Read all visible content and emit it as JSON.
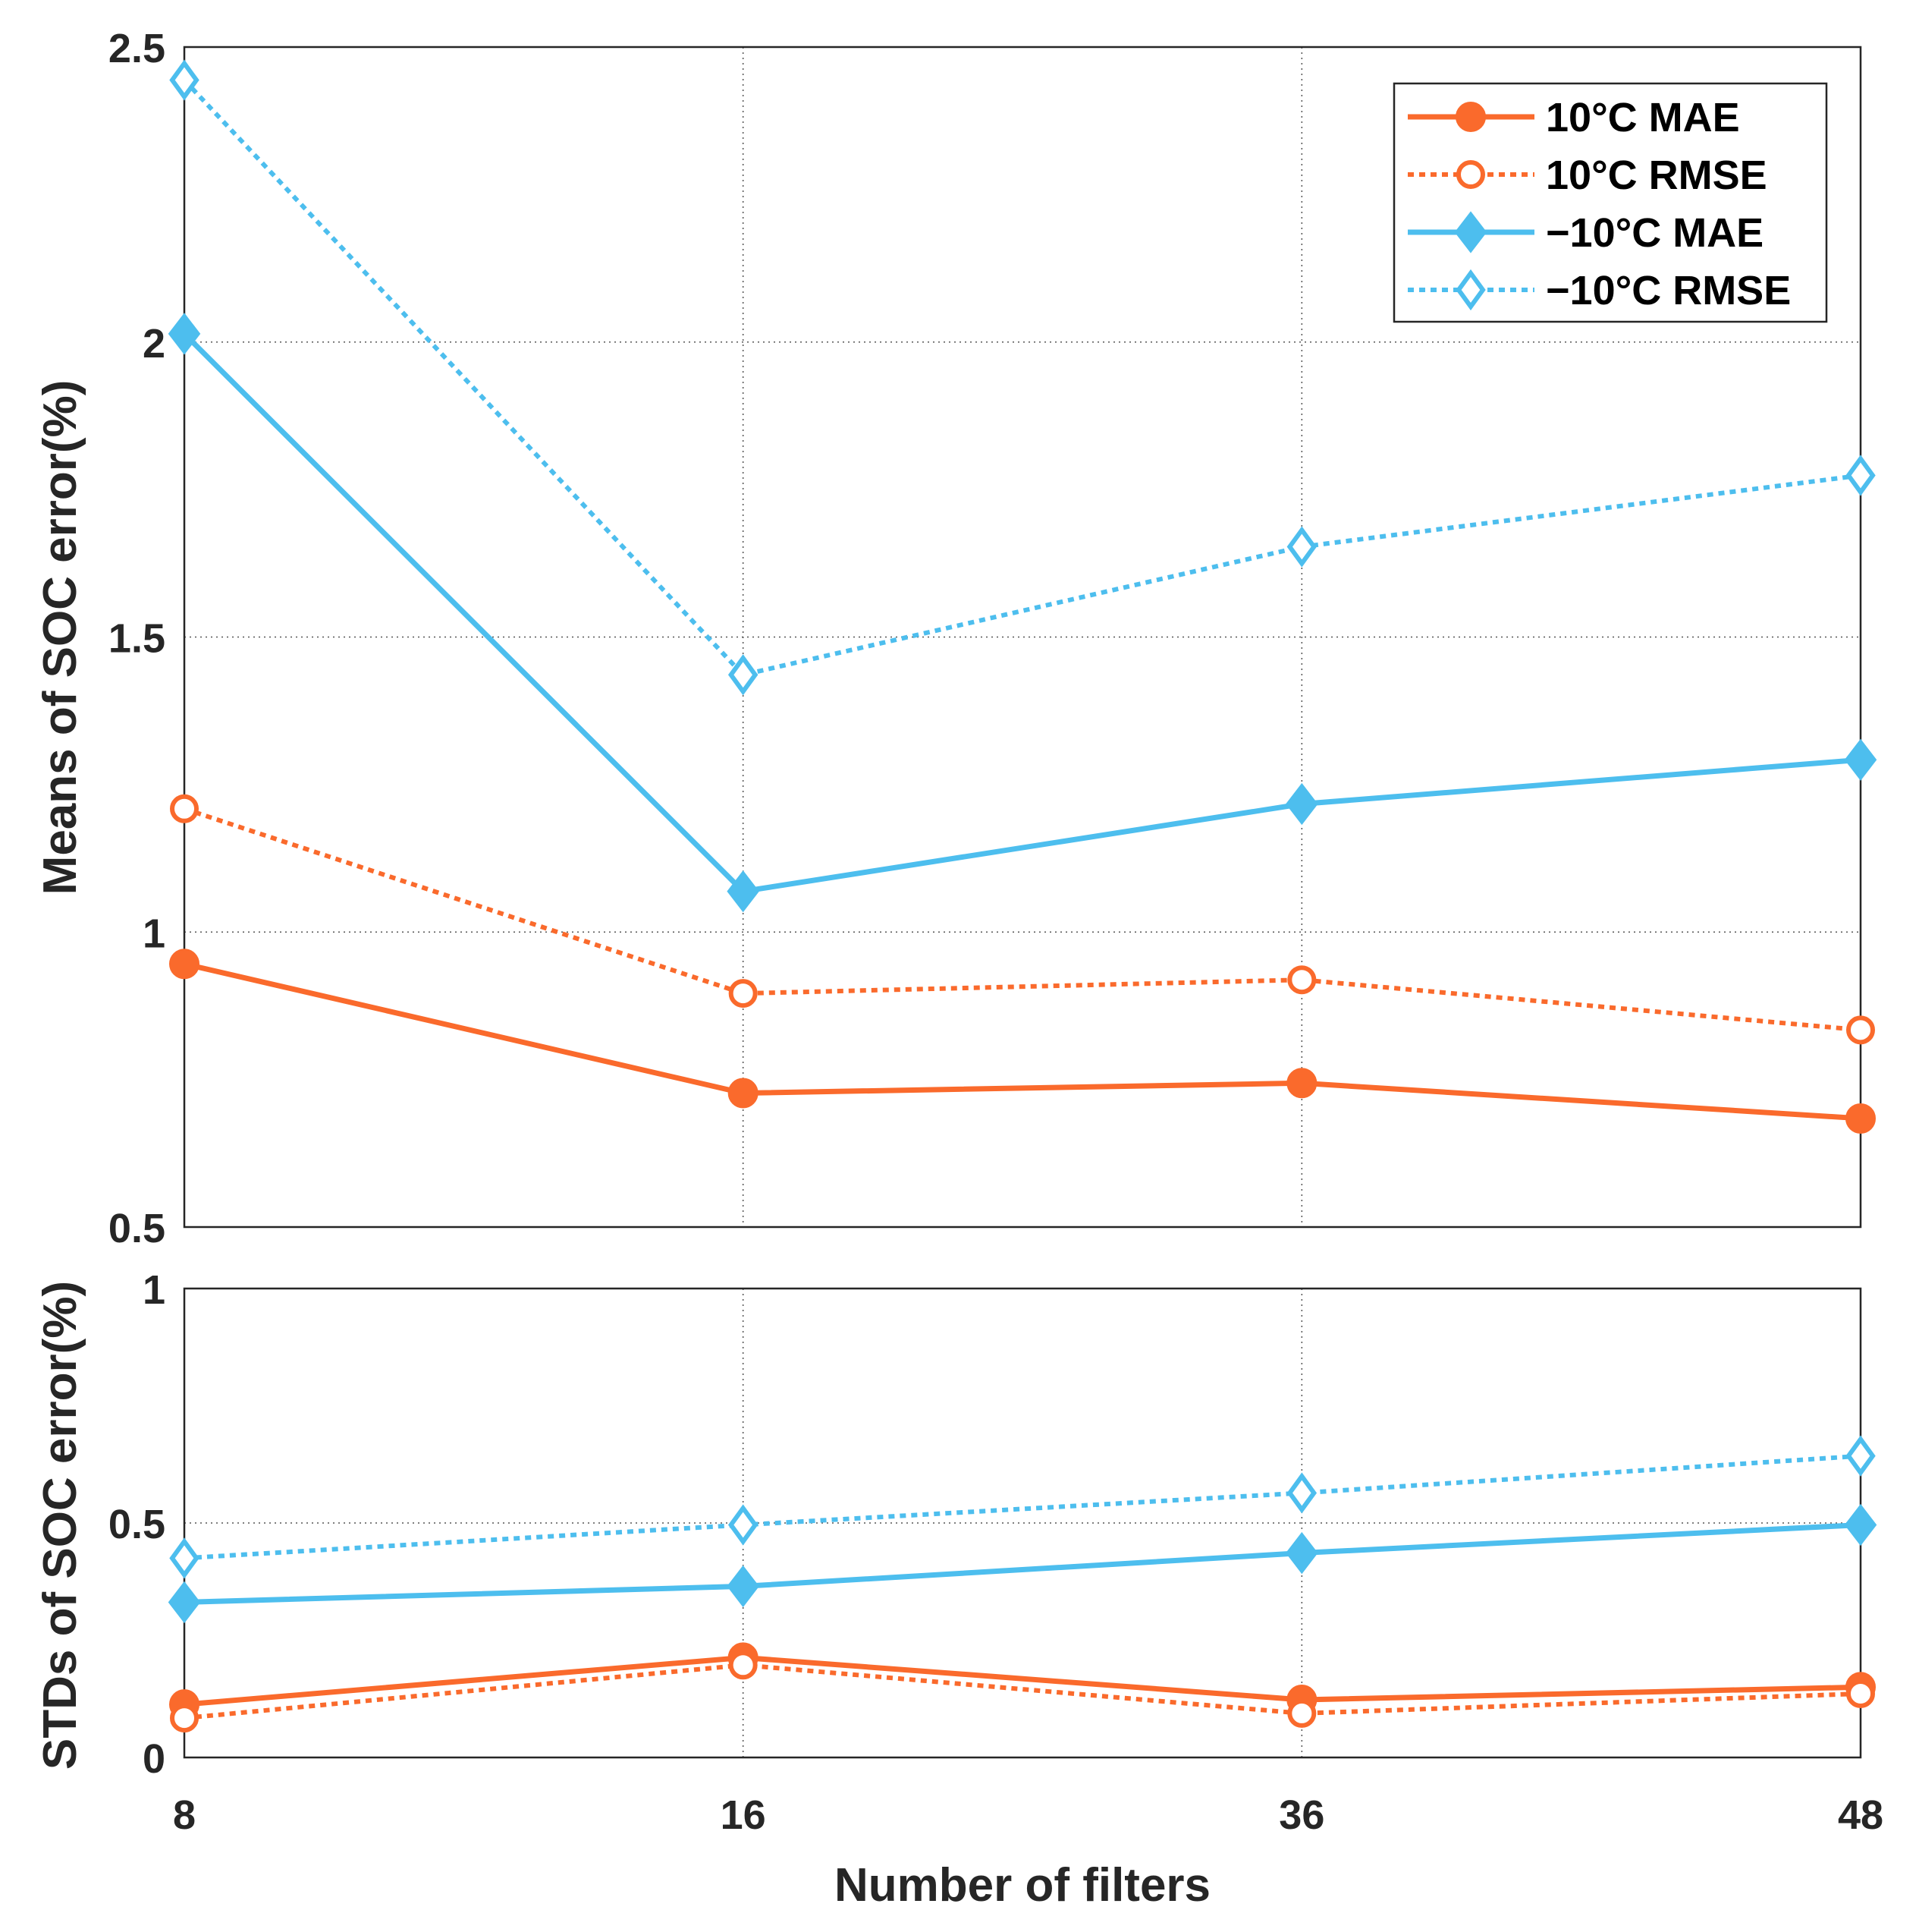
{
  "colors": {
    "orange": "#FA6A2C",
    "blue": "#4DBEEE"
  },
  "chart_data": [
    {
      "type": "line",
      "ylabel": "Means of SOC error(%)",
      "xlabel": "",
      "x": [
        "8",
        "16",
        "36",
        "48"
      ],
      "ylim": [
        0.5,
        2.5
      ],
      "yticks": [
        "0.5",
        "1",
        "1.5",
        "2",
        "2.5"
      ],
      "grid": true,
      "legend": "top-right",
      "series": [
        {
          "name": "10°C MAE",
          "values": [
            0.946,
            0.727,
            0.744,
            0.684
          ]
        },
        {
          "name": "10°C RMSE",
          "values": [
            1.209,
            0.896,
            0.919,
            0.834
          ]
        },
        {
          "name": "−10°C MAE",
          "values": [
            2.014,
            1.069,
            1.217,
            1.292
          ]
        },
        {
          "name": "−10°C RMSE",
          "values": [
            2.444,
            1.436,
            1.653,
            1.774
          ]
        }
      ]
    },
    {
      "type": "line",
      "ylabel": "STDs of SOC error(%)",
      "xlabel": "Number of filters",
      "x": [
        "8",
        "16",
        "36",
        "48"
      ],
      "ylim": [
        0,
        1
      ],
      "yticks": [
        "0",
        "0.5",
        "1"
      ],
      "grid": true,
      "series": [
        {
          "name": "10°C MAE",
          "values": [
            0.113,
            0.213,
            0.123,
            0.15
          ]
        },
        {
          "name": "10°C RMSE",
          "values": [
            0.084,
            0.197,
            0.094,
            0.136
          ]
        },
        {
          "name": "−10°C MAE",
          "values": [
            0.331,
            0.365,
            0.436,
            0.496
          ]
        },
        {
          "name": "−10°C RMSE",
          "values": [
            0.425,
            0.496,
            0.564,
            0.643
          ]
        }
      ]
    }
  ]
}
